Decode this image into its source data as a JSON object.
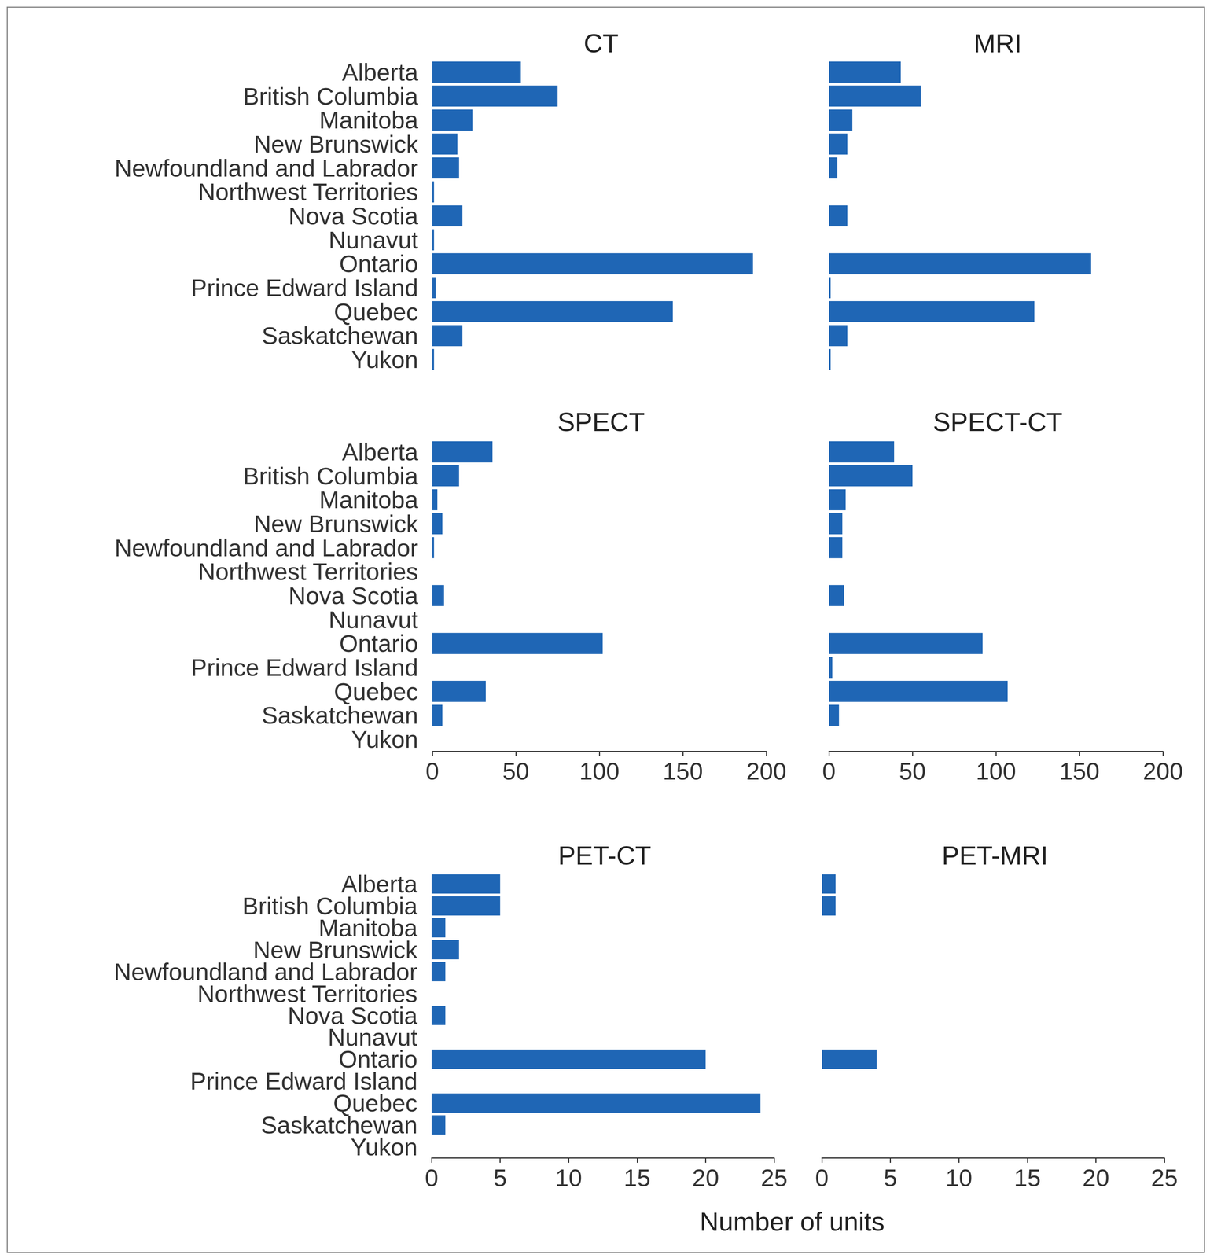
{
  "xlabel": "Number of units",
  "chart_data": [
    {
      "type": "bar",
      "orientation": "horizontal",
      "title": "CT",
      "color": "#1f66b5",
      "grid": false,
      "tick_labels": "y",
      "categories": [
        "Alberta",
        "British Columbia",
        "Manitoba",
        "New Brunswick",
        "Newfoundland and Labrador",
        "Northwest Territories",
        "Nova Scotia",
        "Nunavut",
        "Ontario",
        "Prince Edward Island",
        "Quebec",
        "Saskatchewan",
        "Yukon"
      ],
      "values": [
        53,
        75,
        24,
        15,
        16,
        1,
        18,
        1,
        192,
        2,
        144,
        18,
        1
      ],
      "xlim": [
        0,
        200
      ],
      "xticks": [
        0,
        50,
        100,
        150,
        200
      ]
    },
    {
      "type": "bar",
      "orientation": "horizontal",
      "title": "MRI",
      "color": "#1f66b5",
      "grid": false,
      "tick_labels": false,
      "categories": [
        "Alberta",
        "British Columbia",
        "Manitoba",
        "New Brunswick",
        "Newfoundland and Labrador",
        "Northwest Territories",
        "Nova Scotia",
        "Nunavut",
        "Ontario",
        "Prince Edward Island",
        "Quebec",
        "Saskatchewan",
        "Yukon"
      ],
      "values": [
        43,
        55,
        14,
        11,
        5,
        0,
        11,
        0,
        157,
        1,
        123,
        11,
        1
      ],
      "xlim": [
        0,
        200
      ],
      "xticks": [
        0,
        50,
        100,
        150,
        200
      ]
    },
    {
      "type": "bar",
      "orientation": "horizontal",
      "title": "SPECT",
      "color": "#1f66b5",
      "grid": false,
      "categories": [
        "Alberta",
        "British Columbia",
        "Manitoba",
        "New Brunswick",
        "Newfoundland and Labrador",
        "Northwest Territories",
        "Nova Scotia",
        "Nunavut",
        "Ontario",
        "Prince Edward Island",
        "Quebec",
        "Saskatchewan",
        "Yukon"
      ],
      "values": [
        36,
        16,
        3,
        6,
        1,
        0,
        7,
        0,
        102,
        0,
        32,
        6,
        0
      ],
      "xlim": [
        0,
        200
      ],
      "xticks": [
        0,
        50,
        100,
        150,
        200
      ]
    },
    {
      "type": "bar",
      "orientation": "horizontal",
      "title": "SPECT-CT",
      "color": "#1f66b5",
      "grid": false,
      "tick_labels": "x",
      "categories": [
        "Alberta",
        "British Columbia",
        "Manitoba",
        "New Brunswick",
        "Newfoundland and Labrador",
        "Northwest Territories",
        "Nova Scotia",
        "Nunavut",
        "Ontario",
        "Prince Edward Island",
        "Quebec",
        "Saskatchewan",
        "Yukon"
      ],
      "values": [
        39,
        50,
        10,
        8,
        8,
        0,
        9,
        0,
        92,
        2,
        107,
        6,
        0
      ],
      "xlim": [
        0,
        200
      ],
      "xticks": [
        0,
        50,
        100,
        150,
        200
      ]
    },
    {
      "type": "bar",
      "orientation": "horizontal",
      "title": "PET-CT",
      "color": "#1f66b5",
      "grid": false,
      "categories": [
        "Alberta",
        "British Columbia",
        "Manitoba",
        "New Brunswick",
        "Newfoundland and Labrador",
        "Northwest Territories",
        "Nova Scotia",
        "Nunavut",
        "Ontario",
        "Prince Edward Island",
        "Quebec",
        "Saskatchewan",
        "Yukon"
      ],
      "values": [
        5,
        5,
        1,
        2,
        1,
        0,
        1,
        0,
        20,
        0,
        24,
        1,
        0
      ],
      "xlim": [
        0,
        25
      ],
      "xticks": [
        0,
        5,
        10,
        15,
        20,
        25
      ]
    },
    {
      "type": "bar",
      "orientation": "horizontal",
      "title": "PET-MRI",
      "color": "#1f66b5",
      "grid": false,
      "tick_labels": "x",
      "categories": [
        "Alberta",
        "British Columbia",
        "Manitoba",
        "New Brunswick",
        "Newfoundland and Labrador",
        "Northwest Territories",
        "Nova Scotia",
        "Nunavut",
        "Ontario",
        "Prince Edward Island",
        "Quebec",
        "Saskatchewan",
        "Yukon"
      ],
      "values": [
        1,
        1,
        0,
        0,
        0,
        0,
        0,
        0,
        4,
        0,
        0,
        0,
        0
      ],
      "xlim": [
        0,
        25
      ],
      "xticks": [
        0,
        5,
        10,
        15,
        20,
        25
      ]
    }
  ]
}
